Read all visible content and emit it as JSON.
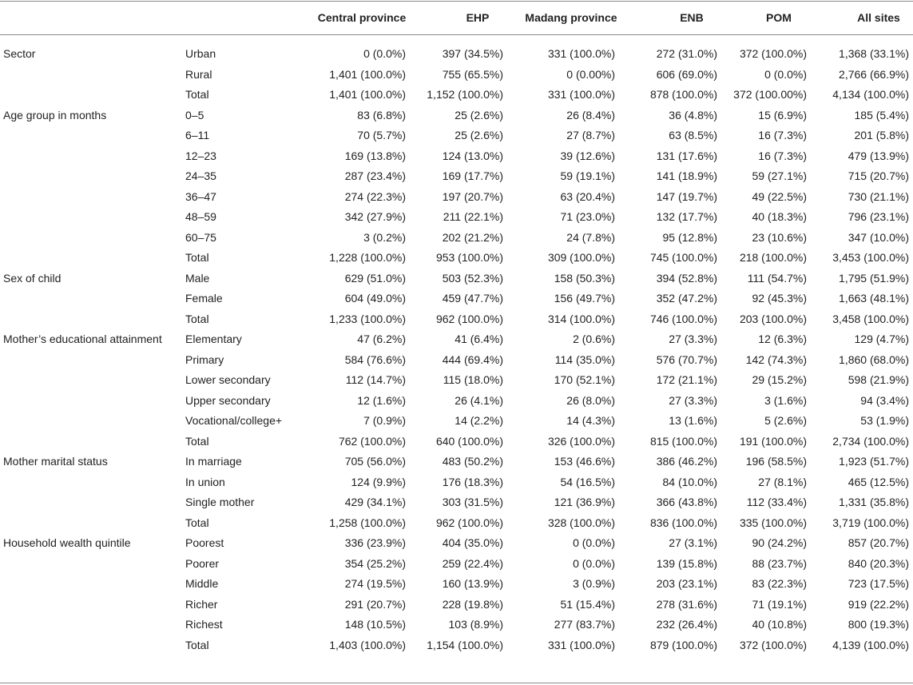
{
  "table": {
    "columns": [
      "Central province",
      "EHP",
      "Madang province",
      "ENB",
      "POM",
      "All sites"
    ],
    "groups": [
      {
        "label": "Sector",
        "rows": [
          {
            "label": "Urban",
            "cells": [
              "0 (0.0%)",
              "397 (34.5%)",
              "331 (100.0%)",
              "272 (31.0%)",
              "372 (100.0%)",
              "1,368 (33.1%)"
            ]
          },
          {
            "label": "Rural",
            "cells": [
              "1,401 (100.0%)",
              "755 (65.5%)",
              "0 (0.00%)",
              "606 (69.0%)",
              "0 (0.0%)",
              "2,766 (66.9%)"
            ]
          },
          {
            "label": "Total",
            "cells": [
              "1,401 (100.0%)",
              "1,152 (100.0%)",
              "331 (100.0%)",
              "878 (100.0%)",
              "372 (100.00%)",
              "4,134 (100.0%)"
            ]
          }
        ]
      },
      {
        "label": "Age group in months",
        "rows": [
          {
            "label": "0–5",
            "cells": [
              "83 (6.8%)",
              "25 (2.6%)",
              "26 (8.4%)",
              "36 (4.8%)",
              "15 (6.9%)",
              "185 (5.4%)"
            ]
          },
          {
            "label": "6–11",
            "cells": [
              "70 (5.7%)",
              "25 (2.6%)",
              "27 (8.7%)",
              "63 (8.5%)",
              "16 (7.3%)",
              "201 (5.8%)"
            ]
          },
          {
            "label": "12–23",
            "cells": [
              "169 (13.8%)",
              "124 (13.0%)",
              "39 (12.6%)",
              "131 (17.6%)",
              "16 (7.3%)",
              "479 (13.9%)"
            ]
          },
          {
            "label": "24–35",
            "cells": [
              "287 (23.4%)",
              "169 (17.7%)",
              "59 (19.1%)",
              "141 (18.9%)",
              "59 (27.1%)",
              "715 (20.7%)"
            ]
          },
          {
            "label": "36–47",
            "cells": [
              "274 (22.3%)",
              "197 (20.7%)",
              "63 (20.4%)",
              "147 (19.7%)",
              "49 (22.5%)",
              "730 (21.1%)"
            ]
          },
          {
            "label": "48–59",
            "cells": [
              "342 (27.9%)",
              "211 (22.1%)",
              "71 (23.0%)",
              "132 (17.7%)",
              "40 (18.3%)",
              "796 (23.1%)"
            ]
          },
          {
            "label": "60–75",
            "cells": [
              "3 (0.2%)",
              "202 (21.2%)",
              "24 (7.8%)",
              "95 (12.8%)",
              "23 (10.6%)",
              "347 (10.0%)"
            ]
          },
          {
            "label": "Total",
            "cells": [
              "1,228 (100.0%)",
              "953 (100.0%)",
              "309 (100.0%)",
              "745 (100.0%)",
              "218 (100.0%)",
              "3,453 (100.0%)"
            ]
          }
        ]
      },
      {
        "label": "Sex of child",
        "rows": [
          {
            "label": "Male",
            "cells": [
              "629 (51.0%)",
              "503 (52.3%)",
              "158 (50.3%)",
              "394 (52.8%)",
              "111 (54.7%)",
              "1,795 (51.9%)"
            ]
          },
          {
            "label": "Female",
            "cells": [
              "604 (49.0%)",
              "459 (47.7%)",
              "156 (49.7%)",
              "352 (47.2%)",
              "92 (45.3%)",
              "1,663 (48.1%)"
            ]
          },
          {
            "label": "Total",
            "cells": [
              "1,233 (100.0%)",
              "962 (100.0%)",
              "314 (100.0%)",
              "746 (100.0%)",
              "203 (100.0%)",
              "3,458 (100.0%)"
            ]
          }
        ]
      },
      {
        "label": "Mother’s educational attainment",
        "rows": [
          {
            "label": "Elementary",
            "cells": [
              "47 (6.2%)",
              "41 (6.4%)",
              "2 (0.6%)",
              "27 (3.3%)",
              "12 (6.3%)",
              "129 (4.7%)"
            ]
          },
          {
            "label": "Primary",
            "cells": [
              "584 (76.6%)",
              "444 (69.4%)",
              "114 (35.0%)",
              "576 (70.7%)",
              "142 (74.3%)",
              "1,860 (68.0%)"
            ]
          },
          {
            "label": "Lower secondary",
            "cells": [
              "112 (14.7%)",
              "115 (18.0%)",
              "170 (52.1%)",
              "172 (21.1%)",
              "29 (15.2%)",
              "598 (21.9%)"
            ]
          },
          {
            "label": "Upper secondary",
            "cells": [
              "12 (1.6%)",
              "26 (4.1%)",
              "26 (8.0%)",
              "27 (3.3%)",
              "3 (1.6%)",
              "94 (3.4%)"
            ]
          },
          {
            "label": "Vocational/college+",
            "cells": [
              "7 (0.9%)",
              "14 (2.2%)",
              "14 (4.3%)",
              "13 (1.6%)",
              "5 (2.6%)",
              "53 (1.9%)"
            ]
          },
          {
            "label": "Total",
            "cells": [
              "762 (100.0%)",
              "640 (100.0%)",
              "326 (100.0%)",
              "815 (100.0%)",
              "191 (100.0%)",
              "2,734 (100.0%)"
            ]
          }
        ]
      },
      {
        "label": "Mother marital status",
        "rows": [
          {
            "label": "In marriage",
            "cells": [
              "705 (56.0%)",
              "483 (50.2%)",
              "153 (46.6%)",
              "386 (46.2%)",
              "196 (58.5%)",
              "1,923 (51.7%)"
            ]
          },
          {
            "label": "In union",
            "cells": [
              "124 (9.9%)",
              "176 (18.3%)",
              "54 (16.5%)",
              "84 (10.0%)",
              "27 (8.1%)",
              "465 (12.5%)"
            ]
          },
          {
            "label": "Single mother",
            "cells": [
              "429 (34.1%)",
              "303 (31.5%)",
              "121 (36.9%)",
              "366 (43.8%)",
              "112 (33.4%)",
              "1,331 (35.8%)"
            ]
          },
          {
            "label": "Total",
            "cells": [
              "1,258 (100.0%)",
              "962 (100.0%)",
              "328 (100.0%)",
              "836 (100.0%)",
              "335 (100.0%)",
              "3,719 (100.0%)"
            ]
          }
        ]
      },
      {
        "label": "Household wealth quintile",
        "rows": [
          {
            "label": "Poorest",
            "cells": [
              "336 (23.9%)",
              "404 (35.0%)",
              "0 (0.0%)",
              "27 (3.1%)",
              "90 (24.2%)",
              "857 (20.7%)"
            ]
          },
          {
            "label": "Poorer",
            "cells": [
              "354 (25.2%)",
              "259 (22.4%)",
              "0 (0.0%)",
              "139 (15.8%)",
              "88 (23.7%)",
              "840 (20.3%)"
            ]
          },
          {
            "label": "Middle",
            "cells": [
              "274 (19.5%)",
              "160 (13.9%)",
              "3 (0.9%)",
              "203 (23.1%)",
              "83 (22.3%)",
              "723 (17.5%)"
            ]
          },
          {
            "label": "Richer",
            "cells": [
              "291 (20.7%)",
              "228 (19.8%)",
              "51 (15.4%)",
              "278 (31.6%)",
              "71 (19.1%)",
              "919 (22.2%)"
            ]
          },
          {
            "label": "Richest",
            "cells": [
              "148 (10.5%)",
              "103 (8.9%)",
              "277 (83.7%)",
              "232 (26.4%)",
              "40 (10.8%)",
              "800 (19.3%)"
            ]
          },
          {
            "label": "Total",
            "cells": [
              "1,403 (100.0%)",
              "1,154 (100.0%)",
              "331 (100.0%)",
              "879 (100.0%)",
              "372 (100.0%)",
              "4,139 (100.0%)"
            ]
          }
        ]
      }
    ]
  }
}
